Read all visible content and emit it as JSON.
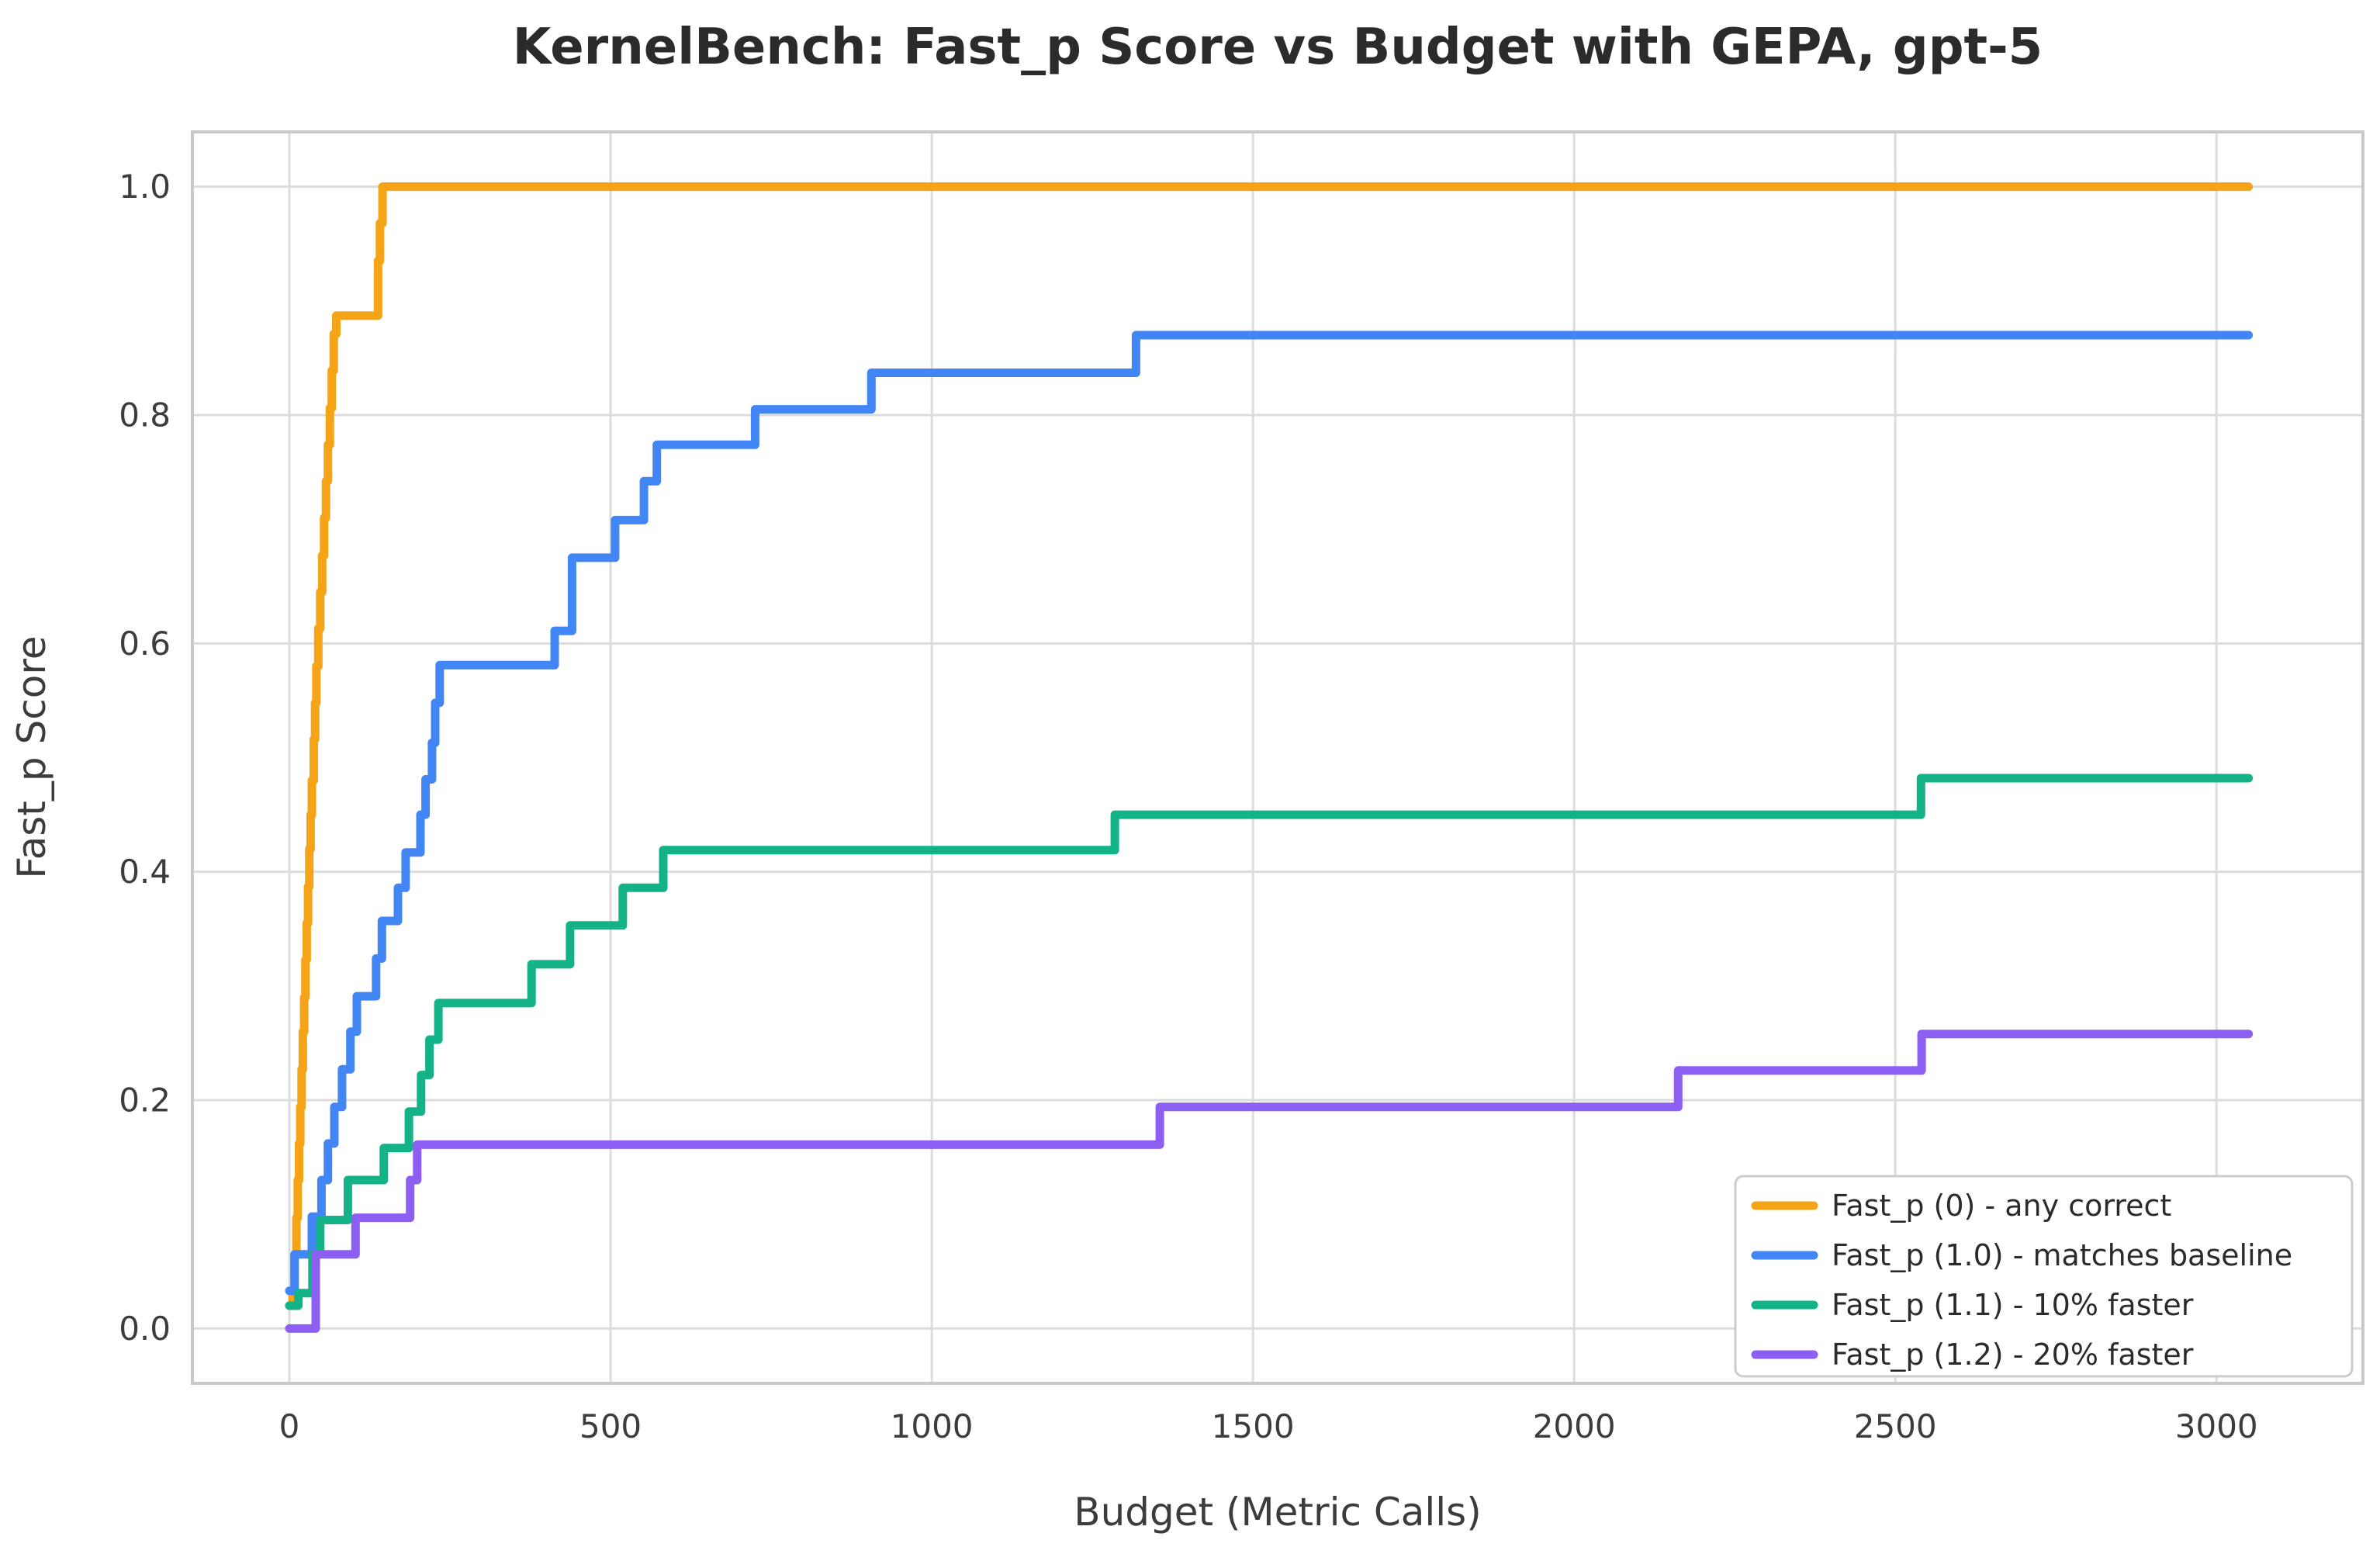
{
  "title": "KernelBench: Fast_p Score vs Budget with GEPA, gpt-5",
  "chart_data": {
    "type": "line",
    "subtype": "step-post",
    "title": "KernelBench: Fast_p Score vs Budget with GEPA, gpt-5",
    "xlabel": "Budget (Metric Calls)",
    "ylabel": "Fast_p Score",
    "x_ticks": [
      0,
      500,
      1000,
      1500,
      2000,
      2500,
      3000
    ],
    "x_tick_labels": [
      "0",
      "500",
      "1000",
      "1500",
      "2000",
      "2500",
      "3000"
    ],
    "y_ticks": [
      0.0,
      0.2,
      0.4,
      0.6,
      0.8,
      1.0
    ],
    "y_tick_labels": [
      "0.0",
      "0.2",
      "0.4",
      "0.6",
      "0.8",
      "1.0"
    ],
    "xlim": [
      -151,
      3228
    ],
    "ylim": [
      -0.048,
      1.048
    ],
    "grid": true,
    "legend_position": "lower right",
    "series": [
      {
        "name": "Fast_p (0) - any correct",
        "color": "#F5A418",
        "final_value": 1.0,
        "points": [
          [
            0,
            0.02
          ],
          [
            5,
            0.032
          ],
          [
            8,
            0.065
          ],
          [
            11,
            0.097
          ],
          [
            13,
            0.13
          ],
          [
            15,
            0.162
          ],
          [
            17,
            0.194
          ],
          [
            19,
            0.227
          ],
          [
            21,
            0.26
          ],
          [
            23,
            0.29
          ],
          [
            25,
            0.323
          ],
          [
            27,
            0.355
          ],
          [
            29,
            0.387
          ],
          [
            31,
            0.42
          ],
          [
            33,
            0.45
          ],
          [
            35,
            0.48
          ],
          [
            38,
            0.516
          ],
          [
            40,
            0.548
          ],
          [
            42,
            0.58
          ],
          [
            45,
            0.613
          ],
          [
            48,
            0.645
          ],
          [
            51,
            0.677
          ],
          [
            54,
            0.71
          ],
          [
            57,
            0.742
          ],
          [
            60,
            0.774
          ],
          [
            63,
            0.806
          ],
          [
            66,
            0.839
          ],
          [
            69,
            0.871
          ],
          [
            73,
            0.887
          ],
          [
            138,
            0.935
          ],
          [
            141,
            0.968
          ],
          [
            145,
            1.0
          ],
          [
            3050,
            1.0
          ]
        ]
      },
      {
        "name": "Fast_p (1.0) - matches baseline",
        "color": "#4285F4",
        "final_value": 0.87,
        "points": [
          [
            0,
            0.033
          ],
          [
            8,
            0.065
          ],
          [
            35,
            0.098
          ],
          [
            50,
            0.13
          ],
          [
            60,
            0.162
          ],
          [
            70,
            0.194
          ],
          [
            82,
            0.227
          ],
          [
            95,
            0.26
          ],
          [
            105,
            0.291
          ],
          [
            135,
            0.324
          ],
          [
            144,
            0.357
          ],
          [
            169,
            0.386
          ],
          [
            181,
            0.417
          ],
          [
            204,
            0.45
          ],
          [
            212,
            0.481
          ],
          [
            222,
            0.513
          ],
          [
            227,
            0.548
          ],
          [
            234,
            0.581
          ],
          [
            413,
            0.611
          ],
          [
            440,
            0.675
          ],
          [
            507,
            0.708
          ],
          [
            552,
            0.742
          ],
          [
            572,
            0.774
          ],
          [
            725,
            0.805
          ],
          [
            906,
            0.837
          ],
          [
            1318,
            0.87
          ],
          [
            3050,
            0.87
          ]
        ]
      },
      {
        "name": "Fast_p (1.1) - 10% faster",
        "color": "#13B287",
        "final_value": 0.482,
        "points": [
          [
            0,
            0.02
          ],
          [
            14,
            0.031
          ],
          [
            36,
            0.065
          ],
          [
            48,
            0.095
          ],
          [
            91,
            0.13
          ],
          [
            147,
            0.158
          ],
          [
            186,
            0.19
          ],
          [
            205,
            0.222
          ],
          [
            218,
            0.253
          ],
          [
            232,
            0.285
          ],
          [
            377,
            0.319
          ],
          [
            437,
            0.353
          ],
          [
            519,
            0.386
          ],
          [
            582,
            0.419
          ],
          [
            1285,
            0.45
          ],
          [
            2540,
            0.482
          ],
          [
            3050,
            0.482
          ]
        ]
      },
      {
        "name": "Fast_p (1.2) - 20% faster",
        "color": "#8D5EF2",
        "final_value": 0.258,
        "points": [
          [
            0,
            0.0
          ],
          [
            41,
            0.065
          ],
          [
            103,
            0.097
          ],
          [
            188,
            0.13
          ],
          [
            199,
            0.161
          ],
          [
            1355,
            0.194
          ],
          [
            2162,
            0.226
          ],
          [
            2541,
            0.258
          ],
          [
            3050,
            0.258
          ]
        ]
      }
    ]
  },
  "colors": {
    "background": "#ffffff",
    "grid": "#dcdcdc",
    "frame": "#c9c9c9",
    "text": "#3c3c3c",
    "title_text": "#2b2b2b"
  }
}
